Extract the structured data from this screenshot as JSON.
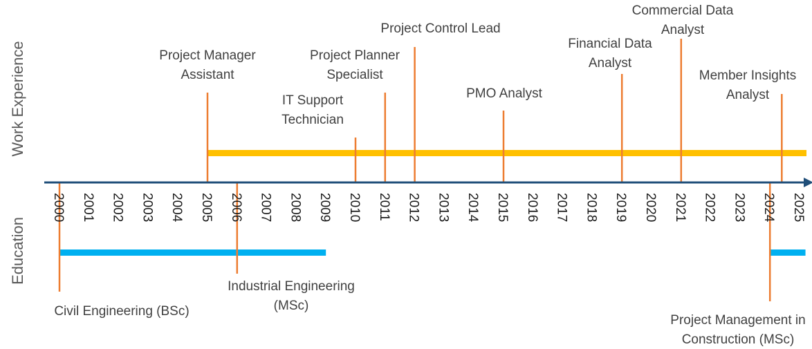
{
  "sections": {
    "work": "Work Experience",
    "education": "Education"
  },
  "chart_data": {
    "type": "timeline",
    "years": [
      2000,
      2001,
      2002,
      2003,
      2004,
      2005,
      2006,
      2007,
      2008,
      2009,
      2010,
      2011,
      2012,
      2013,
      2014,
      2015,
      2016,
      2017,
      2018,
      2019,
      2020,
      2021,
      2022,
      2023,
      2024,
      2025
    ],
    "work_span": {
      "start": 2005,
      "end": 2025.0
    },
    "education_spans": [
      {
        "start": 2000,
        "end": 2009
      },
      {
        "start": 2024,
        "end": 2025.2
      }
    ],
    "work_events": [
      {
        "year": 2005,
        "lines": [
          "Project Manager",
          "Assistant"
        ]
      },
      {
        "year": 2010,
        "lines": [
          "IT Support",
          "Technician"
        ]
      },
      {
        "year": 2011,
        "lines": [
          "Project Planner",
          "Specialist"
        ]
      },
      {
        "year": 2012,
        "lines": [
          "Project Control Lead"
        ]
      },
      {
        "year": 2015,
        "lines": [
          "PMO Analyst"
        ]
      },
      {
        "year": 2019,
        "lines": [
          "Financial Data",
          "Analyst"
        ]
      },
      {
        "year": 2021,
        "lines": [
          "Commercial Data",
          "Analyst"
        ]
      },
      {
        "year": 2024.4,
        "lines": [
          "Member Insights",
          "Analyst"
        ]
      }
    ],
    "education_events": [
      {
        "year": 2000,
        "lines": [
          "Civil Engineering (BSc)"
        ]
      },
      {
        "year": 2006,
        "lines": [
          "Industrial Engineering",
          "(MSc)"
        ]
      },
      {
        "year": 2024,
        "lines": [
          "Project Management in",
          "Construction (MSc)"
        ]
      }
    ],
    "colors": {
      "axis": "#1f4e79",
      "marker": "#ed7d31",
      "work_bar": "#ffc000",
      "education_bar": "#00b0f0",
      "text": "#404040"
    }
  }
}
